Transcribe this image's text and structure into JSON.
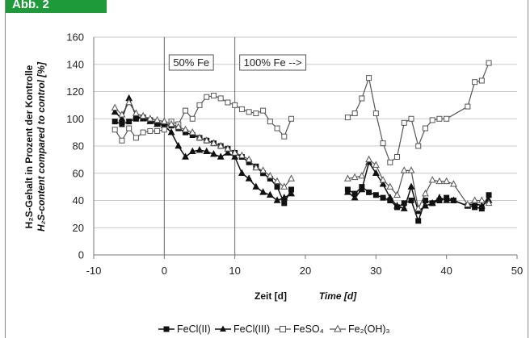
{
  "header": {
    "tab_label": "Abb. 2"
  },
  "chart_data": {
    "type": "line",
    "xlabel_de": "Zeit [d]",
    "xlabel_en": "Time [d]",
    "ylabel_de": "H₂S-Gehalt in Prozent der Kontrolle",
    "ylabel_en": "H₂S-content compared to control [%]",
    "xlim": [
      -10,
      50
    ],
    "ylim": [
      0,
      160
    ],
    "xticks": [
      -10,
      0,
      10,
      20,
      30,
      40,
      50
    ],
    "yticks": [
      0,
      20,
      40,
      60,
      80,
      100,
      120,
      140,
      160
    ],
    "grid": "horizontal",
    "legend_position": "bottom",
    "annotations": [
      {
        "text": "50% Fe",
        "x": 0
      },
      {
        "text": "100% Fe -->",
        "x": 10
      }
    ],
    "series": [
      {
        "name": "FeCl(II)",
        "marker": "square-filled",
        "segments": [
          [
            [
              -7,
              98
            ],
            [
              -6,
              96
            ],
            [
              -5,
              98
            ],
            [
              -4,
              100
            ],
            [
              -3,
              101
            ],
            [
              -2,
              99
            ],
            [
              -1,
              97
            ],
            [
              0,
              96
            ],
            [
              1,
              95
            ],
            [
              2,
              93
            ],
            [
              3,
              90
            ],
            [
              4,
              88
            ],
            [
              5,
              86
            ],
            [
              6,
              84
            ],
            [
              7,
              82
            ],
            [
              8,
              80
            ],
            [
              9,
              78
            ],
            [
              10,
              75
            ],
            [
              11,
              72
            ],
            [
              12,
              68
            ],
            [
              13,
              65
            ],
            [
              14,
              60
            ],
            [
              15,
              56
            ],
            [
              16,
              50
            ],
            [
              17,
              38
            ],
            [
              18,
              48
            ]
          ],
          [
            [
              26,
              48
            ],
            [
              27,
              45
            ],
            [
              28,
              50
            ],
            [
              29,
              46
            ],
            [
              30,
              44
            ],
            [
              31,
              42
            ],
            [
              32,
              40
            ],
            [
              33,
              35
            ],
            [
              34,
              38
            ],
            [
              35,
              40
            ],
            [
              36,
              25
            ],
            [
              37,
              40
            ],
            [
              38,
              38
            ],
            [
              39,
              40
            ],
            [
              40,
              42
            ],
            [
              41,
              40
            ],
            [
              43,
              36
            ],
            [
              44,
              35
            ],
            [
              45,
              34
            ],
            [
              46,
              44
            ]
          ]
        ]
      },
      {
        "name": "FeCl(III)",
        "marker": "triangle-filled",
        "segments": [
          [
            [
              -7,
              105
            ],
            [
              -6,
              100
            ],
            [
              -5,
              115
            ],
            [
              -4,
              102
            ],
            [
              -3,
              100
            ],
            [
              -2,
              98
            ],
            [
              -1,
              96
            ],
            [
              0,
              95
            ],
            [
              1,
              90
            ],
            [
              2,
              80
            ],
            [
              3,
              72
            ],
            [
              4,
              76
            ],
            [
              5,
              77
            ],
            [
              6,
              76
            ],
            [
              7,
              74
            ],
            [
              8,
              72
            ],
            [
              9,
              75
            ],
            [
              10,
              72
            ],
            [
              11,
              60
            ],
            [
              12,
              56
            ],
            [
              13,
              50
            ],
            [
              14,
              46
            ],
            [
              15,
              44
            ],
            [
              16,
              40
            ],
            [
              17,
              42
            ],
            [
              18,
              45
            ]
          ],
          [
            [
              26,
              46
            ],
            [
              27,
              42
            ],
            [
              28,
              48
            ],
            [
              29,
              68
            ],
            [
              30,
              60
            ],
            [
              31,
              52
            ],
            [
              32,
              42
            ],
            [
              33,
              36
            ],
            [
              34,
              34
            ],
            [
              35,
              50
            ],
            [
              36,
              32
            ],
            [
              37,
              36
            ],
            [
              38,
              38
            ],
            [
              39,
              42
            ],
            [
              40,
              40
            ],
            [
              41,
              40
            ],
            [
              43,
              36
            ],
            [
              44,
              38
            ],
            [
              45,
              36
            ],
            [
              46,
              40
            ]
          ]
        ]
      },
      {
        "name": "FeSO₄",
        "marker": "square-open",
        "segments": [
          [
            [
              -7,
              92
            ],
            [
              -6,
              84
            ],
            [
              -5,
              93
            ],
            [
              -4,
              86
            ],
            [
              -3,
              90
            ],
            [
              -2,
              91
            ],
            [
              -1,
              91
            ],
            [
              0,
              92
            ],
            [
              1,
              98
            ],
            [
              2,
              96
            ],
            [
              3,
              106
            ],
            [
              4,
              100
            ],
            [
              5,
              110
            ],
            [
              6,
              116
            ],
            [
              7,
              117
            ],
            [
              8,
              115
            ],
            [
              9,
              112
            ],
            [
              10,
              110
            ],
            [
              11,
              107
            ],
            [
              12,
              105
            ],
            [
              13,
              104
            ],
            [
              14,
              106
            ],
            [
              15,
              98
            ],
            [
              16,
              93
            ],
            [
              17,
              87
            ],
            [
              18,
              100
            ]
          ],
          [
            [
              26,
              101
            ],
            [
              27,
              104
            ],
            [
              28,
              115
            ],
            [
              29,
              130
            ],
            [
              30,
              104
            ],
            [
              31,
              82
            ],
            [
              32,
              68
            ],
            [
              33,
              72
            ],
            [
              34,
              97
            ],
            [
              35,
              100
            ],
            [
              36,
              80
            ],
            [
              37,
              93
            ],
            [
              38,
              99
            ],
            [
              39,
              100
            ],
            [
              40,
              100
            ],
            [
              43,
              109
            ],
            [
              44,
              127
            ],
            [
              45,
              128
            ],
            [
              46,
              141
            ]
          ]
        ]
      },
      {
        "name": "Fe₂(OH)₃",
        "marker": "triangle-open",
        "segments": [
          [
            [
              -7,
              108
            ],
            [
              -6,
              103
            ],
            [
              -5,
              112
            ],
            [
              -4,
              104
            ],
            [
              -3,
              102
            ],
            [
              -2,
              100
            ],
            [
              -1,
              99
            ],
            [
              0,
              98
            ],
            [
              1,
              96
            ],
            [
              2,
              94
            ],
            [
              3,
              92
            ],
            [
              4,
              90
            ],
            [
              5,
              86
            ],
            [
              6,
              84
            ],
            [
              7,
              82
            ],
            [
              8,
              80
            ],
            [
              9,
              78
            ],
            [
              10,
              75
            ],
            [
              11,
              73
            ],
            [
              12,
              70
            ],
            [
              13,
              64
            ],
            [
              14,
              62
            ],
            [
              15,
              58
            ],
            [
              16,
              54
            ],
            [
              17,
              50
            ],
            [
              18,
              56
            ]
          ],
          [
            [
              26,
              56
            ],
            [
              27,
              57
            ],
            [
              28,
              58
            ],
            [
              29,
              70
            ],
            [
              30,
              66
            ],
            [
              31,
              55
            ],
            [
              32,
              50
            ],
            [
              33,
              44
            ],
            [
              34,
              62
            ],
            [
              35,
              62
            ],
            [
              36,
              34
            ],
            [
              37,
              45
            ],
            [
              38,
              55
            ],
            [
              39,
              54
            ],
            [
              40,
              54
            ],
            [
              41,
              52
            ],
            [
              43,
              37
            ],
            [
              44,
              40
            ],
            [
              45,
              40
            ],
            [
              46,
              38
            ]
          ]
        ]
      }
    ]
  }
}
